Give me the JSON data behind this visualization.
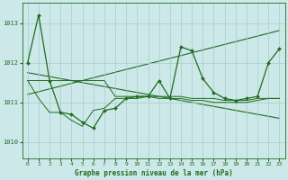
{
  "background_color": "#cde8e8",
  "grid_color": "#a8cccc",
  "line_color": "#1f6b1f",
  "title": "Graphe pression niveau de la mer (hPa)",
  "xlim": [
    -0.5,
    23.5
  ],
  "ylim": [
    1009.6,
    1013.5
  ],
  "yticks": [
    1010,
    1011,
    1012,
    1013
  ],
  "xticks": [
    0,
    1,
    2,
    3,
    4,
    5,
    6,
    7,
    8,
    9,
    10,
    11,
    12,
    13,
    14,
    15,
    16,
    17,
    18,
    19,
    20,
    21,
    22,
    23
  ],
  "series_main": [
    1012.0,
    1013.2,
    1011.55,
    1010.75,
    1010.7,
    1010.5,
    1010.35,
    1010.8,
    1010.85,
    1011.1,
    1011.15,
    1011.15,
    1011.55,
    1011.1,
    1012.4,
    1012.3,
    1011.6,
    1011.25,
    1011.1,
    1011.05,
    1011.1,
    1011.15,
    1012.0,
    1012.35
  ],
  "series_smooth": [
    1011.55,
    1011.55,
    1011.55,
    1011.55,
    1011.55,
    1011.55,
    1011.55,
    1011.55,
    1011.15,
    1011.15,
    1011.15,
    1011.15,
    1011.15,
    1011.15,
    1011.15,
    1011.1,
    1011.1,
    1011.1,
    1011.05,
    1011.05,
    1011.05,
    1011.1,
    1011.1,
    1011.1
  ],
  "series_lower": [
    1011.55,
    1011.1,
    1010.75,
    1010.75,
    1010.55,
    1010.4,
    1010.8,
    1010.85,
    1011.1,
    1011.1,
    1011.1,
    1011.15,
    1011.1,
    1011.1,
    1011.1,
    1011.05,
    1011.05,
    1011.0,
    1011.0,
    1011.0,
    1011.0,
    1011.05,
    1011.1,
    1011.1
  ],
  "trend_up": [
    1011.2,
    1011.27,
    1011.34,
    1011.41,
    1011.48,
    1011.55,
    1011.62,
    1011.69,
    1011.76,
    1011.83,
    1011.9,
    1011.97,
    1012.04,
    1012.11,
    1012.18,
    1012.25,
    1012.32,
    1012.39,
    1012.46,
    1012.53,
    1012.6,
    1012.67,
    1012.74,
    1012.81
  ],
  "trend_down": [
    1011.75,
    1011.7,
    1011.65,
    1011.6,
    1011.55,
    1011.5,
    1011.45,
    1011.4,
    1011.35,
    1011.3,
    1011.25,
    1011.2,
    1011.15,
    1011.1,
    1011.05,
    1011.0,
    1010.95,
    1010.9,
    1010.85,
    1010.8,
    1010.75,
    1010.7,
    1010.65,
    1010.6
  ]
}
